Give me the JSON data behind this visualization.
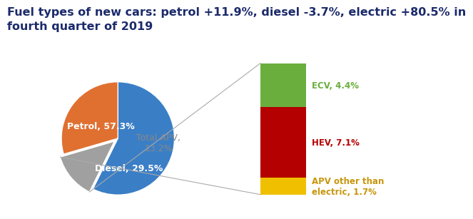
{
  "title": "Fuel types of new cars: petrol +11.9%, diesel -3.7%, electric +80.5% in\nfourth quarter of 2019",
  "title_color": "#1B2A6B",
  "title_fontsize": 11.5,
  "pie_values": [
    57.3,
    13.2,
    29.5
  ],
  "pie_colors": [
    "#3A7EC6",
    "#A0A0A0",
    "#E07030"
  ],
  "pie_explode": [
    0,
    0.08,
    0
  ],
  "pie_label_petrol": "Petrol, 57.3%",
  "pie_label_diesel": "Diesel, 29.5%",
  "pie_label_apv": "Total APV,\n13.2%",
  "pie_label_color_apv": "#888888",
  "pie_label_fontsize": 9,
  "bar_labels": [
    "ECV, 4.4%",
    "HEV, 7.1%",
    "APV other than\nelectric, 1.7%"
  ],
  "bar_values": [
    4.4,
    7.1,
    1.7
  ],
  "bar_colors": [
    "#6AAF3D",
    "#B40000",
    "#F0C000"
  ],
  "bar_label_colors": [
    "#6AAF3D",
    "#B40000",
    "#C8960C"
  ],
  "bar_label_fontsize": 8.5,
  "line_color": "#AAAAAA",
  "background_color": "#FFFFFF"
}
